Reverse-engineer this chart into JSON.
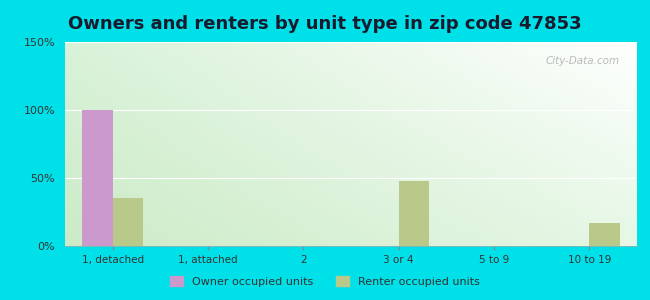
{
  "title": "Owners and renters by unit type in zip code 47853",
  "categories": [
    "1, detached",
    "1, attached",
    "2",
    "3 or 4",
    "5 to 9",
    "10 to 19"
  ],
  "owner_values": [
    100,
    0,
    0,
    0,
    0,
    0
  ],
  "renter_values": [
    35,
    0,
    0,
    48,
    0,
    17
  ],
  "owner_color": "#cc99cc",
  "renter_color": "#b8c98a",
  "bg_outer": "#00e0e8",
  "ylim": [
    0,
    150
  ],
  "yticks": [
    0,
    50,
    100,
    150
  ],
  "ytick_labels": [
    "0%",
    "50%",
    "100%",
    "150%"
  ],
  "owner_label": "Owner occupied units",
  "renter_label": "Renter occupied units",
  "bar_width": 0.32,
  "title_fontsize": 13,
  "watermark": "City-Data.com",
  "grad_top_left": "#d6efe0",
  "grad_top_right": "#ffffff",
  "grad_bottom_left": "#c8e8c0",
  "grad_bottom_right": "#e0f0e8"
}
